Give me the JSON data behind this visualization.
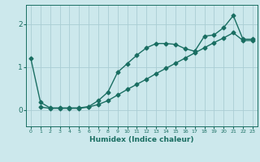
{
  "xlabel": "Humidex (Indice chaleur)",
  "background_color": "#cce8ec",
  "grid_color": "#aacdd4",
  "line_color": "#1a6e62",
  "x_ticks": [
    0,
    1,
    2,
    3,
    4,
    5,
    6,
    7,
    8,
    9,
    10,
    11,
    12,
    13,
    14,
    15,
    16,
    17,
    18,
    19,
    20,
    21,
    22,
    23
  ],
  "y_ticks": [
    0,
    1,
    2
  ],
  "xlim": [
    -0.5,
    23.5
  ],
  "ylim": [
    -0.38,
    2.45
  ],
  "line1_x": [
    0,
    1,
    2,
    3,
    4,
    5,
    6,
    7,
    8,
    9,
    10,
    11,
    12,
    13,
    14,
    15,
    16,
    17,
    18,
    19,
    20,
    21,
    22,
    23
  ],
  "line1_y": [
    1.2,
    0.18,
    0.05,
    0.05,
    0.05,
    0.05,
    0.08,
    0.22,
    0.42,
    0.88,
    1.08,
    1.28,
    1.45,
    1.55,
    1.55,
    1.53,
    1.43,
    1.37,
    1.72,
    1.75,
    1.92,
    2.2,
    1.65,
    1.65
  ],
  "line2_x": [
    1,
    2,
    3,
    4,
    5,
    6,
    7,
    8,
    9,
    10,
    11,
    12,
    13,
    14,
    15,
    16,
    17,
    18,
    19,
    20,
    21,
    22,
    23
  ],
  "line2_y": [
    0.07,
    0.04,
    0.04,
    0.04,
    0.04,
    0.07,
    0.13,
    0.22,
    0.35,
    0.48,
    0.6,
    0.72,
    0.85,
    0.97,
    1.09,
    1.21,
    1.33,
    1.45,
    1.57,
    1.68,
    1.8,
    1.62,
    1.62
  ],
  "marker": "D",
  "marker_size": 2.5,
  "linewidth": 1.0
}
